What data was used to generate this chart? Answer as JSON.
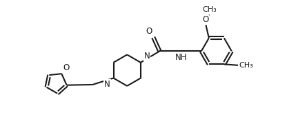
{
  "bg_color": "#ffffff",
  "line_color": "#1a1a1a",
  "line_width": 1.5,
  "font_size": 8.5,
  "figsize": [
    4.16,
    1.86
  ],
  "dpi": 100,
  "xlim": [
    0,
    10
  ],
  "ylim": [
    0,
    5
  ]
}
